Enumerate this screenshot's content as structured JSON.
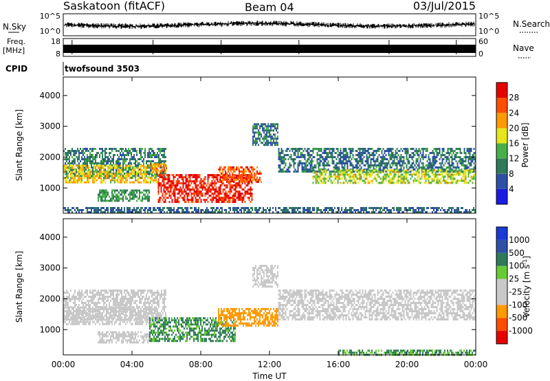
{
  "header": {
    "station": "Saskatoon (fitACF)",
    "beam": "Beam 04",
    "date": "03/Jul/2015"
  },
  "strips": {
    "nsky_label": "N.Sky",
    "nsky_top": "10^5",
    "nsky_bottom": "10^0",
    "nsearch_label": "N.Search",
    "nsearch_top": "10^5",
    "nsearch_bottom": "10^0",
    "freq_label": "Freq.",
    "freq_unit": "[MHz]",
    "freq_top": "18",
    "freq_bottom": "8",
    "nave_label": "Nave",
    "nave_top": "60",
    "nave_bottom": "0",
    "cpid_label": "CPID",
    "cpid_value": "twofsound 3503"
  },
  "colors": {
    "power": [
      "#1a1ae6",
      "#2d4fa8",
      "#2f7a5a",
      "#48b048",
      "#e6e61a",
      "#ff9900",
      "#ff4d00",
      "#e60000"
    ],
    "velocity": [
      "#e60000",
      "#ff4d00",
      "#ff9900",
      "#c8c8c8",
      "#c8c8c8",
      "#66cc33",
      "#2f7a5a",
      "#2d4fa8",
      "#1a3ad6"
    ]
  },
  "chart_data": [
    {
      "type": "heatmap",
      "name": "power-panel",
      "xlabel": "",
      "ylabel": "Slant Range [km]",
      "x_range_hours": [
        0,
        24
      ],
      "ylim": [
        180,
        4600
      ],
      "yticks": [
        1000,
        2000,
        3000,
        4000
      ],
      "colorbar": {
        "label": "Power [dB]",
        "range": [
          0,
          32
        ],
        "tick_labels": [
          "4",
          "8",
          "12",
          "16",
          "20",
          "24",
          "28"
        ],
        "tick_values": [
          4,
          8,
          12,
          16,
          20,
          24,
          28
        ]
      },
      "bands": [
        {
          "t_start": 0,
          "t_end": 6,
          "range_low_km": 1350,
          "range_high_km": 2300,
          "power_db": 10
        },
        {
          "t_start": 0,
          "t_end": 5.5,
          "range_low_km": 1150,
          "range_high_km": 1750,
          "power_db": 19
        },
        {
          "t_start": 2,
          "t_end": 5,
          "range_low_km": 600,
          "range_high_km": 950,
          "power_db": 12
        },
        {
          "t_start": 5.5,
          "t_end": 11,
          "range_low_km": 550,
          "range_high_km": 1450,
          "power_db": 29
        },
        {
          "t_start": 5,
          "t_end": 6,
          "range_low_km": 1500,
          "range_high_km": 1800,
          "power_db": 22
        },
        {
          "t_start": 9,
          "t_end": 11.5,
          "range_low_km": 1200,
          "range_high_km": 1700,
          "power_db": 26
        },
        {
          "t_start": 11,
          "t_end": 12.5,
          "range_low_km": 2400,
          "range_high_km": 3100,
          "power_db": 9
        },
        {
          "t_start": 12.5,
          "t_end": 24,
          "range_low_km": 1500,
          "range_high_km": 2300,
          "power_db": 9
        },
        {
          "t_start": 14.5,
          "t_end": 24,
          "range_low_km": 1150,
          "range_high_km": 1600,
          "power_db": 17
        },
        {
          "t_start": 0,
          "t_end": 24,
          "range_low_km": 180,
          "range_high_km": 380,
          "power_db": 8
        }
      ]
    },
    {
      "type": "heatmap",
      "name": "velocity-panel",
      "xlabel": "Time UT",
      "ylabel": "Slant Range [km]",
      "x_range_hours": [
        0,
        24
      ],
      "xtick_labels": [
        "00:00",
        "04:00",
        "08:00",
        "12:00",
        "16:00",
        "20:00",
        "00:00"
      ],
      "ylim": [
        180,
        4600
      ],
      "yticks": [
        1000,
        2000,
        3000,
        4000
      ],
      "colorbar": {
        "label": "Velocity [m s^-1]",
        "tick_labels": [
          "-1000",
          "-500",
          "-100",
          "-25",
          "25",
          "100",
          "500",
          "1000"
        ]
      },
      "bands": [
        {
          "t_start": 0,
          "t_end": 6,
          "range_low_km": 1350,
          "range_high_km": 2300,
          "velocity_ms": 10
        },
        {
          "t_start": 0,
          "t_end": 5.5,
          "range_low_km": 1150,
          "range_high_km": 1750,
          "velocity_ms": -10
        },
        {
          "t_start": 2,
          "t_end": 5,
          "range_low_km": 600,
          "range_high_km": 950,
          "velocity_ms": 15
        },
        {
          "t_start": 5,
          "t_end": 10,
          "range_low_km": 650,
          "range_high_km": 1400,
          "velocity_ms": 120
        },
        {
          "t_start": 9,
          "t_end": 12.5,
          "range_low_km": 1100,
          "range_high_km": 1700,
          "velocity_ms": -250
        },
        {
          "t_start": 11,
          "t_end": 12.5,
          "range_low_km": 2400,
          "range_high_km": 3100,
          "velocity_ms": 10
        },
        {
          "t_start": 12.5,
          "t_end": 24,
          "range_low_km": 1300,
          "range_high_km": 2300,
          "velocity_ms": -10
        },
        {
          "t_start": 16,
          "t_end": 24,
          "range_low_km": 180,
          "range_high_km": 350,
          "velocity_ms": 110
        }
      ]
    }
  ]
}
